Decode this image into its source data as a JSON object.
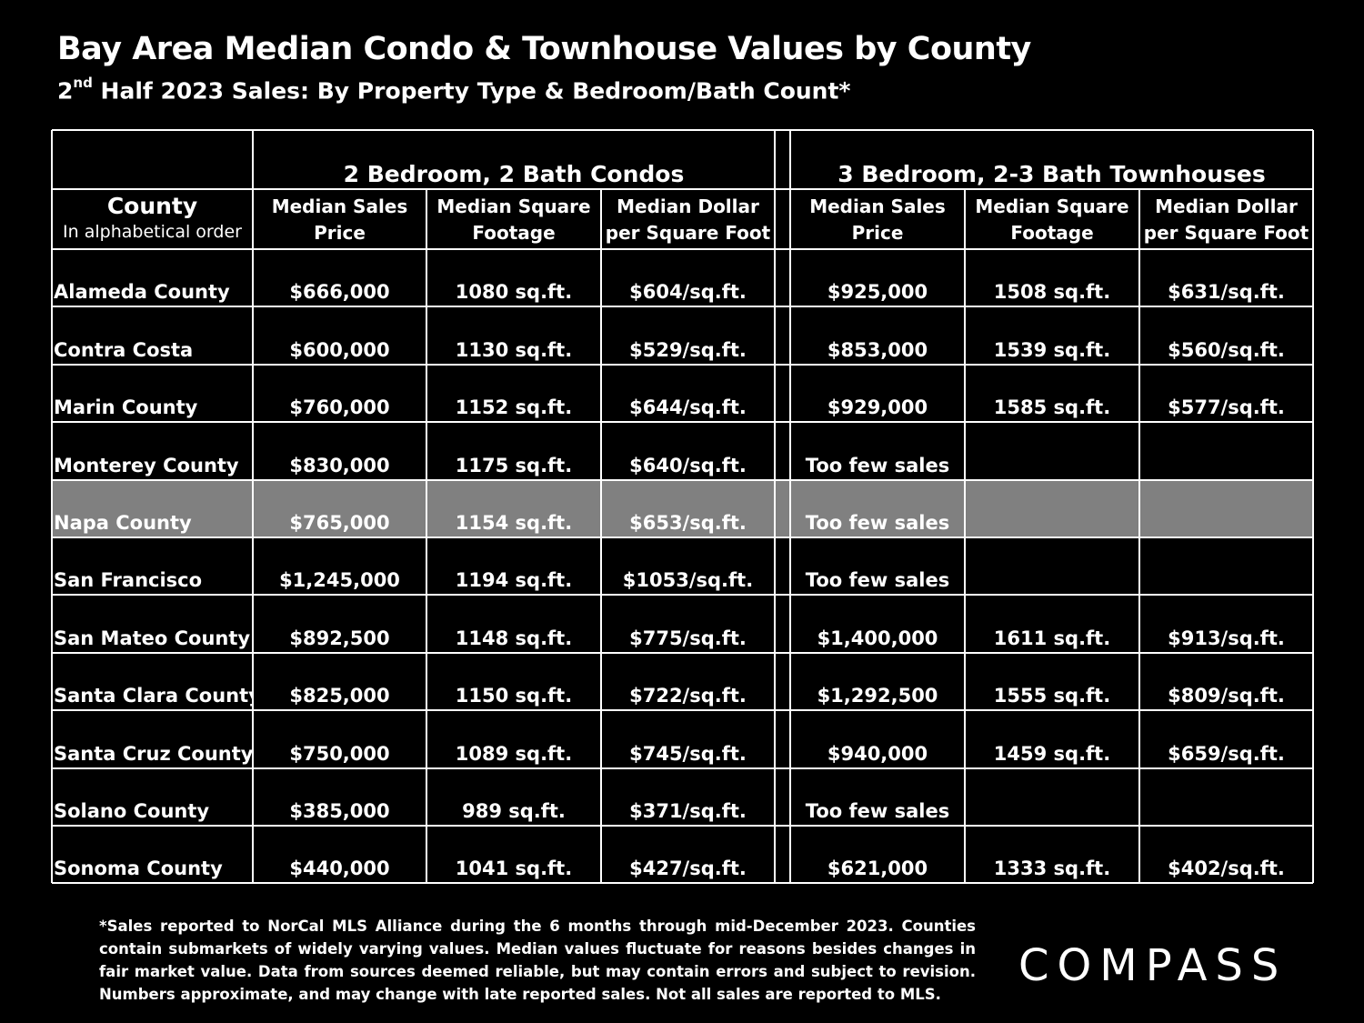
{
  "title": "Bay Area Median Condo & Townhouse Values by County",
  "subtitle": {
    "ordinal_num": "2",
    "ordinal_sup": "nd",
    "rest": " Half 2023 Sales:  By Property Type & Bedroom/Bath Count*"
  },
  "chart_data": {
    "type": "table",
    "groups": [
      "2 Bedroom, 2 Bath Condos",
      "3 Bedroom, 2-3 Bath Townhouses"
    ],
    "county_header": {
      "line1": "County",
      "line2": "In alphabetical order"
    },
    "columns": [
      {
        "line1": "Median Sales",
        "line2": "Price"
      },
      {
        "line1": "Median Square",
        "line2": "Footage"
      },
      {
        "line1": "Median Dollar",
        "line2": "per Square Foot"
      },
      {
        "line1": "Median Sales",
        "line2": "Price"
      },
      {
        "line1": "Median Square",
        "line2": "Footage"
      },
      {
        "line1": "Median Dollar",
        "line2": "per Square Foot"
      }
    ],
    "rows": [
      {
        "county": "Alameda County",
        "highlight": false,
        "values": [
          "$666,000",
          "1080 sq.ft.",
          "$604/sq.ft.",
          "$925,000",
          "1508 sq.ft.",
          "$631/sq.ft."
        ]
      },
      {
        "county": "Contra Costa",
        "highlight": false,
        "values": [
          "$600,000",
          "1130 sq.ft.",
          "$529/sq.ft.",
          "$853,000",
          "1539 sq.ft.",
          "$560/sq.ft."
        ]
      },
      {
        "county": "Marin County",
        "highlight": false,
        "values": [
          "$760,000",
          "1152 sq.ft.",
          "$644/sq.ft.",
          "$929,000",
          "1585 sq.ft.",
          "$577/sq.ft."
        ]
      },
      {
        "county": "Monterey County",
        "highlight": false,
        "values": [
          "$830,000",
          "1175 sq.ft.",
          "$640/sq.ft.",
          "Too few sales",
          "",
          ""
        ]
      },
      {
        "county": "Napa County",
        "highlight": true,
        "values": [
          "$765,000",
          "1154 sq.ft.",
          "$653/sq.ft.",
          "Too few sales",
          "",
          ""
        ]
      },
      {
        "county": "San Francisco",
        "highlight": false,
        "values": [
          "$1,245,000",
          "1194 sq.ft.",
          "$1053/sq.ft.",
          "Too few sales",
          "",
          ""
        ]
      },
      {
        "county": "San Mateo County",
        "highlight": false,
        "values": [
          "$892,500",
          "1148 sq.ft.",
          "$775/sq.ft.",
          "$1,400,000",
          "1611 sq.ft.",
          "$913/sq.ft."
        ]
      },
      {
        "county": "Santa Clara County",
        "highlight": false,
        "values": [
          "$825,000",
          "1150 sq.ft.",
          "$722/sq.ft.",
          "$1,292,500",
          "1555 sq.ft.",
          "$809/sq.ft."
        ]
      },
      {
        "county": "Santa Cruz County",
        "highlight": false,
        "values": [
          "$750,000",
          "1089 sq.ft.",
          "$745/sq.ft.",
          "$940,000",
          "1459 sq.ft.",
          "$659/sq.ft."
        ]
      },
      {
        "county": "Solano County",
        "highlight": false,
        "values": [
          "$385,000",
          "989 sq.ft.",
          "$371/sq.ft.",
          "Too few sales",
          "",
          ""
        ]
      },
      {
        "county": "Sonoma County",
        "highlight": false,
        "values": [
          "$440,000",
          "1041 sq.ft.",
          "$427/sq.ft.",
          "$621,000",
          "1333 sq.ft.",
          "$402/sq.ft."
        ]
      }
    ]
  },
  "footnote": "*Sales reported to NorCal MLS Alliance during the 6 months through mid-December 2023. Counties contain submarkets of widely varying values. Median values fluctuate for reasons besides changes in fair market value. Data from sources deemed reliable, but may contain errors and subject to revision.  Numbers approximate, and may change with late reported sales. Not all sales are reported to MLS.",
  "logo": "COMPASS",
  "colors": {
    "background": "#000000",
    "text": "#ffffff",
    "grid": "#ffffff",
    "highlight_row": "#808080"
  }
}
